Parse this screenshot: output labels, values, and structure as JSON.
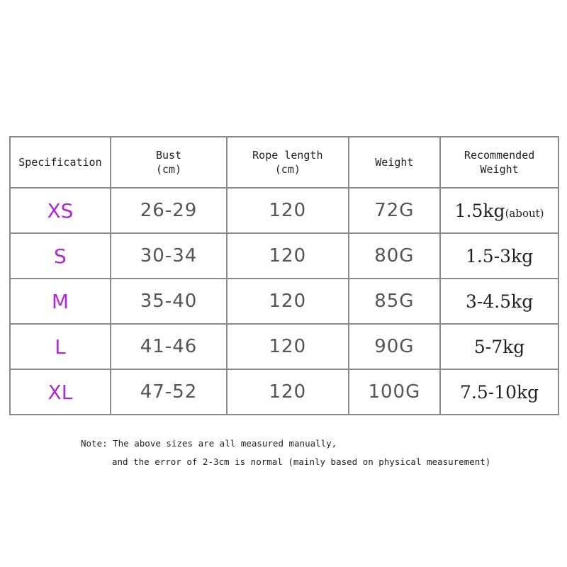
{
  "headers": {
    "specification": "Specification",
    "bust": "Bust",
    "bust_unit": "(cm)",
    "rope_length": "Rope length",
    "rope_unit": "(cm)",
    "weight": "Weight",
    "recommended_line1": "Recommended",
    "recommended_line2": "Weight"
  },
  "rows": [
    {
      "size": "XS",
      "bust": "26-29",
      "rope": "120",
      "weight": "72G",
      "recommended": "1.5kg",
      "note": "(about)"
    },
    {
      "size": "S",
      "bust": "30-34",
      "rope": "120",
      "weight": "80G",
      "recommended": "1.5-3kg"
    },
    {
      "size": "M",
      "bust": "35-40",
      "rope": "120",
      "weight": "85G",
      "recommended": "3-4.5kg"
    },
    {
      "size": "L",
      "bust": "41-46",
      "rope": "120",
      "weight": "90G",
      "recommended": "5-7kg"
    },
    {
      "size": "XL",
      "bust": "47-52",
      "rope": "120",
      "weight": "100G",
      "recommended": "7.5-10kg"
    }
  ],
  "note": {
    "line1": "Note: The above sizes are all measured manually,",
    "line2": "and the error of 2-3cm is normal (mainly based on physical measurement)"
  },
  "colors": {
    "size_label": "#b028d8",
    "values": "#555555",
    "border": "#8a8a8a"
  }
}
